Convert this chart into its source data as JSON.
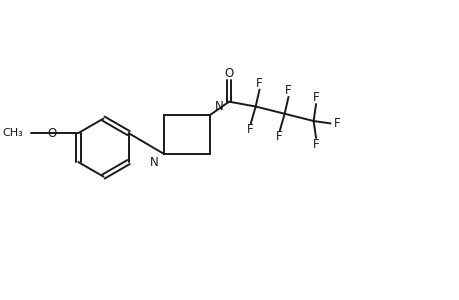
{
  "background": "#ffffff",
  "line_color": "#1a1a1a",
  "line_width": 1.4,
  "font_size": 8.5,
  "figsize": [
    4.6,
    3.0
  ],
  "dpi": 100,
  "xlim": [
    0,
    9.2
  ],
  "ylim": [
    0,
    6.0
  ]
}
